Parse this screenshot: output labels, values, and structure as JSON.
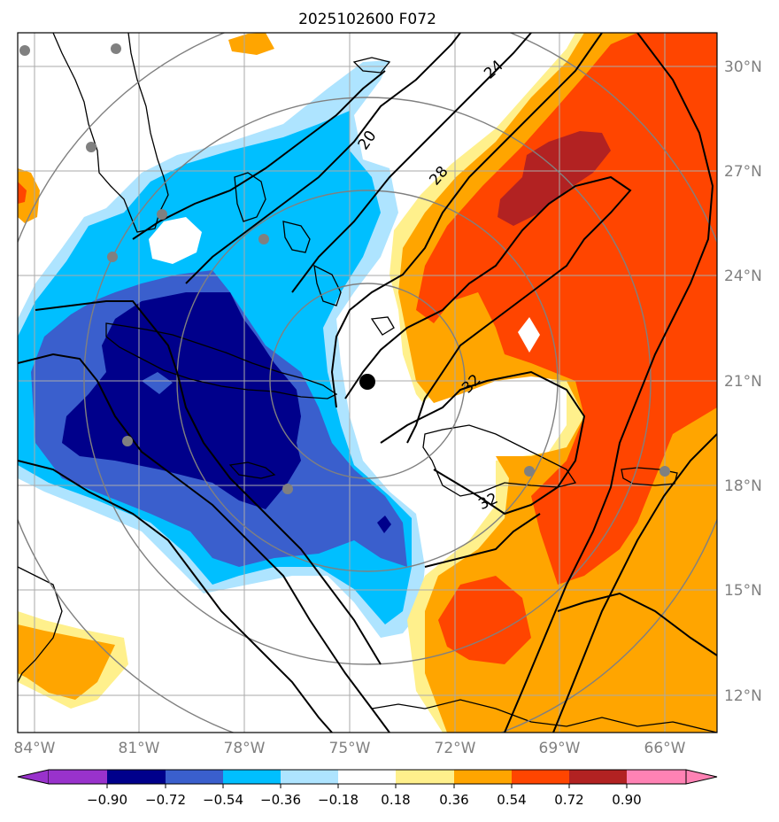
{
  "title": "2025102600 F072",
  "colors": {
    "dark_red": "#b22222",
    "orange_red": "#ff4500",
    "orange": "#ffa500",
    "light_yellow": "#fff08c",
    "light_blue": "#aee4ff",
    "deep_sky": "#00bfff",
    "royal_blue": "#3a5fcd",
    "navy": "#00008b",
    "purple": "#9932cc",
    "pink": "#ff82b4",
    "grid": "#aaaaaa",
    "tick_label": "#808080",
    "range_ring": "#808080",
    "city_dot": "#808080"
  },
  "lon_labels": [
    "84°W",
    "81°W",
    "78°W",
    "75°W",
    "72°W",
    "69°W",
    "66°W"
  ],
  "lat_labels": [
    "30°N",
    "27°N",
    "24°N",
    "21°N",
    "18°N",
    "15°N",
    "12°N"
  ],
  "contour_labels": [
    "24",
    "20",
    "28",
    "32",
    "32"
  ],
  "colorbar": {
    "colors": [
      "#9932cc",
      "#00008b",
      "#3a5fcd",
      "#00bfff",
      "#aee4ff",
      "#ffffff",
      "#fff08c",
      "#ffa500",
      "#ff4500",
      "#b22222",
      "#ff82b4"
    ],
    "ticks": [
      "−0.90",
      "−0.72",
      "−0.54",
      "−0.36",
      "−0.18",
      "0.18",
      "0.36",
      "0.54",
      "0.72",
      "0.90"
    ]
  },
  "storm_center": {
    "lat": 21.0,
    "lon": -74.0
  }
}
